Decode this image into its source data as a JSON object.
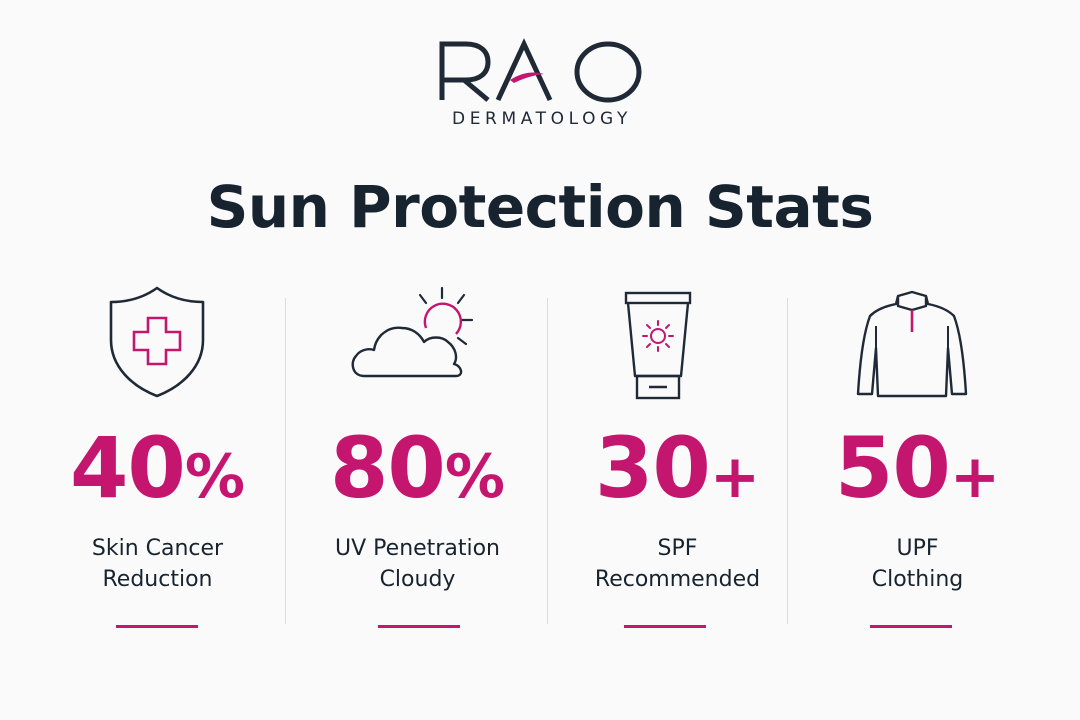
{
  "brand": {
    "logo_text": "RAO",
    "subtitle": "DERMATOLOGY",
    "accent_color": "#c4166f",
    "text_color": "#17232e"
  },
  "title": "Sun Protection Stats",
  "stats": [
    {
      "icon": "shield-cross-icon",
      "value": "40",
      "suffix": "%",
      "label_lines": [
        "Skin Cancer",
        "Reduction"
      ]
    },
    {
      "icon": "cloud-sun-icon",
      "value": "80",
      "suffix": "%",
      "label_lines": [
        "UV Penetration",
        "Cloudy"
      ]
    },
    {
      "icon": "sunscreen-tube-icon",
      "value": "30",
      "suffix": "+",
      "label_lines": [
        "SPF",
        "Recommended"
      ]
    },
    {
      "icon": "upf-jacket-icon",
      "value": "50",
      "suffix": "+",
      "label_lines": [
        "UPF",
        "Clothing"
      ]
    }
  ]
}
